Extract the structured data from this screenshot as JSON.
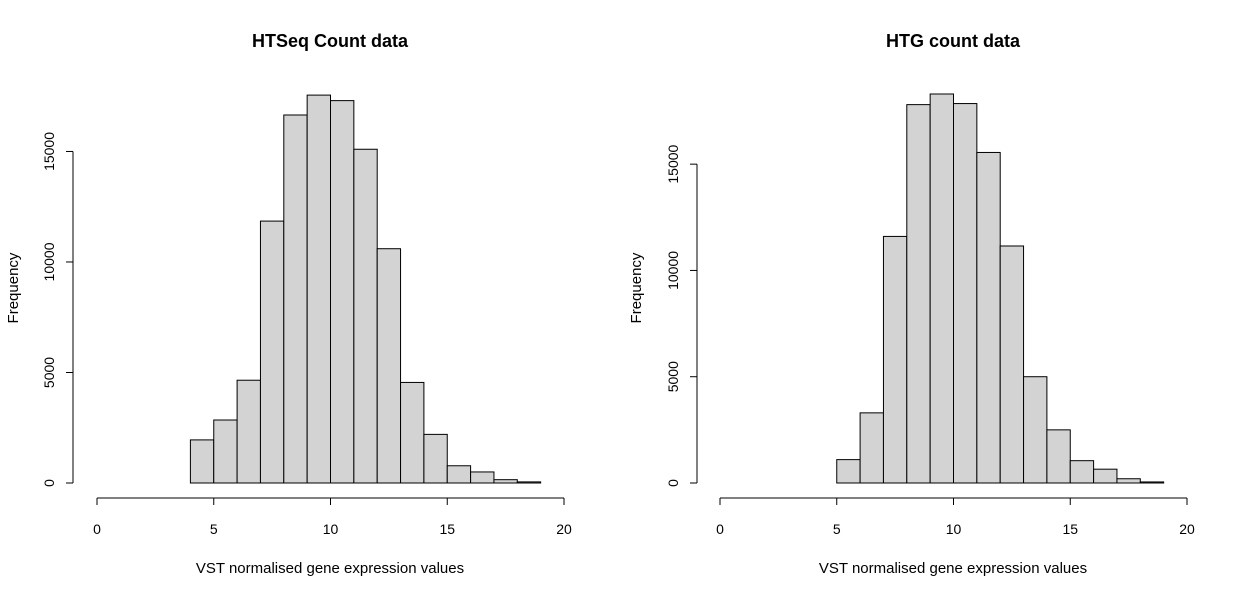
{
  "colors": {
    "bar_fill": "#d3d3d3",
    "bar_stroke": "#000000",
    "background": "#ffffff"
  },
  "chart_data": [
    {
      "type": "bar",
      "title": "HTSeq Count data",
      "xlabel": "VST normalised gene expression values",
      "ylabel": "Frequency",
      "xlim": [
        0,
        20
      ],
      "ylim": [
        0,
        17600
      ],
      "x_ticks": [
        0,
        5,
        10,
        15,
        20
      ],
      "x_tick_labels": [
        "0",
        "5",
        "10",
        "15",
        "20"
      ],
      "y_ticks": [
        0,
        5000,
        10000,
        15000
      ],
      "y_tick_labels": [
        "0",
        "5000",
        "10000",
        "15000"
      ],
      "bin_edges": [
        4,
        5,
        6,
        7,
        8,
        9,
        10,
        11,
        12,
        13,
        14,
        15,
        16,
        17,
        18,
        19
      ],
      "values": [
        1950,
        2850,
        4650,
        11850,
        16650,
        17550,
        17300,
        15100,
        10600,
        4550,
        2200,
        780,
        500,
        150,
        50
      ],
      "grid": false,
      "legend": "none"
    },
    {
      "type": "bar",
      "title": "HTG count data",
      "xlabel": "VST normalised gene expression values",
      "ylabel": "Frequency",
      "xlim": [
        0,
        20
      ],
      "ylim": [
        0,
        18300
      ],
      "x_ticks": [
        0,
        5,
        10,
        15,
        20
      ],
      "x_tick_labels": [
        "0",
        "5",
        "10",
        "15",
        "20"
      ],
      "y_ticks": [
        0,
        5000,
        10000,
        15000
      ],
      "y_tick_labels": [
        "0",
        "5000",
        "10000",
        "15000"
      ],
      "bin_edges": [
        5,
        6,
        7,
        8,
        9,
        10,
        11,
        12,
        13,
        14,
        15,
        16,
        17,
        18,
        19
      ],
      "values": [
        1100,
        3300,
        11600,
        17800,
        18300,
        17850,
        15550,
        11150,
        5000,
        2500,
        1050,
        650,
        200,
        50
      ],
      "grid": false,
      "legend": "none"
    }
  ]
}
